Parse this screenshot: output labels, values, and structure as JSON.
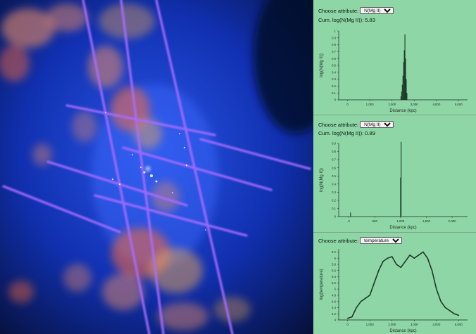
{
  "visualization": {
    "background_colors": {
      "deep": "#06103a",
      "mid": "#1030b0",
      "bright": "#2a55e6"
    },
    "sightline_color": "#a86cff",
    "gas_cloud_colors": [
      "#e88a6a",
      "#ff6a3a",
      "#ffb04a"
    ]
  },
  "panels": [
    {
      "attribute_label": "Choose attribute:",
      "selected_attribute": "N(Mg II)",
      "cumulative_label": "Cum. log(N(Mg II)):",
      "cumulative_value": "5.83",
      "chart_data": {
        "type": "bar",
        "xlabel": "Distance (kpc)",
        "ylabel": "log(N(Mg II))",
        "x_ticks": [
          "0",
          "1,000",
          "2,000",
          "3,000",
          "4,000",
          "5,000"
        ],
        "y_ticks": [
          "0",
          "0.1",
          "0.2",
          "0.3",
          "0.4",
          "0.5",
          "0.6",
          "0.7",
          "0.8",
          "0.9",
          "1"
        ],
        "xlim": [
          -400,
          5400
        ],
        "ylim": [
          0,
          1
        ],
        "x": [
          2400,
          2430,
          2460,
          2490,
          2520,
          2550,
          2580,
          2610,
          2640,
          2670
        ],
        "values": [
          0.05,
          0.12,
          0.22,
          0.35,
          0.55,
          0.72,
          0.95,
          0.6,
          0.3,
          0.1
        ]
      }
    },
    {
      "attribute_label": "Choose attribute:",
      "selected_attribute": "N(Mg II)",
      "cumulative_label": "Cum. log(N(Mg II)):",
      "cumulative_value": "0.89",
      "chart_data": {
        "type": "bar",
        "xlabel": "Distance (kpc)",
        "ylabel": "log(N(Mg II))",
        "x_ticks": [
          "0",
          "500",
          "1,000",
          "1,500",
          "2,000"
        ],
        "y_ticks": [
          "0",
          "0.1",
          "0.2",
          "0.3",
          "0.4",
          "0.5",
          "0.6",
          "0.7",
          "0.8",
          "0.9"
        ],
        "xlim": [
          -200,
          2300
        ],
        "ylim": [
          0,
          0.9
        ],
        "x": [
          30,
          1000,
          1010
        ],
        "values": [
          0.05,
          0.48,
          0.92
        ]
      }
    },
    {
      "attribute_label": "Choose attribute:",
      "selected_attribute": "temperature",
      "chart_data": {
        "type": "line",
        "xlabel": "Distance (kpc)",
        "ylabel": "log(temperature)",
        "x_ticks": [
          "0",
          "1,000",
          "2,000",
          "3,000",
          "4,000",
          "5,000"
        ],
        "y_ticks": [
          "4",
          "4.2",
          "4.4",
          "4.6",
          "4.8",
          "5",
          "5.2",
          "5.4",
          "5.6",
          "5.8",
          "6",
          "6.2"
        ],
        "xlim": [
          -400,
          5400
        ],
        "ylim": [
          4,
          6.3
        ],
        "x": [
          0,
          200,
          400,
          600,
          800,
          1000,
          1200,
          1400,
          1600,
          1800,
          2000,
          2200,
          2400,
          2600,
          2800,
          3000,
          3200,
          3400,
          3600,
          3800,
          4000,
          4200,
          4400,
          4600,
          4800,
          5000
        ],
        "values": [
          4.05,
          4.1,
          4.4,
          4.6,
          4.7,
          4.8,
          5.2,
          5.6,
          5.9,
          6.0,
          6.05,
          5.8,
          5.7,
          5.9,
          6.1,
          6.0,
          6.1,
          6.2,
          6.0,
          5.6,
          5.0,
          4.6,
          4.4,
          4.3,
          4.2,
          4.15
        ]
      }
    }
  ]
}
